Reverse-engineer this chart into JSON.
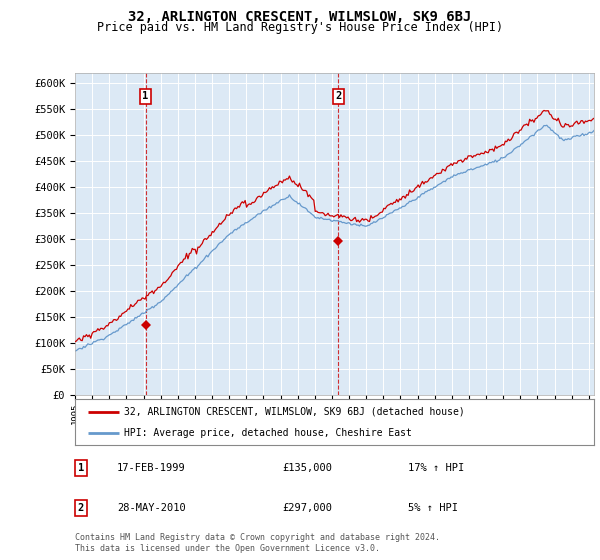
{
  "title": "32, ARLINGTON CRESCENT, WILMSLOW, SK9 6BJ",
  "subtitle": "Price paid vs. HM Land Registry's House Price Index (HPI)",
  "ylabel_ticks": [
    "£0",
    "£50K",
    "£100K",
    "£150K",
    "£200K",
    "£250K",
    "£300K",
    "£350K",
    "£400K",
    "£450K",
    "£500K",
    "£550K",
    "£600K"
  ],
  "ytick_values": [
    0,
    50000,
    100000,
    150000,
    200000,
    250000,
    300000,
    350000,
    400000,
    450000,
    500000,
    550000,
    600000
  ],
  "ylim": [
    0,
    620000
  ],
  "xlim_start": 1995.0,
  "xlim_end": 2025.3,
  "sale1_year": 1999.12,
  "sale1_price": 135000,
  "sale2_year": 2010.38,
  "sale2_price": 297000,
  "legend_line1": "32, ARLINGTON CRESCENT, WILMSLOW, SK9 6BJ (detached house)",
  "legend_line2": "HPI: Average price, detached house, Cheshire East",
  "note1_num": "1",
  "note1_date": "17-FEB-1999",
  "note1_price": "£135,000",
  "note1_hpi": "17% ↑ HPI",
  "note2_num": "2",
  "note2_date": "28-MAY-2010",
  "note2_price": "£297,000",
  "note2_hpi": "5% ↑ HPI",
  "footer": "Contains HM Land Registry data © Crown copyright and database right 2024.\nThis data is licensed under the Open Government Licence v3.0.",
  "red_color": "#cc0000",
  "blue_color": "#6699cc",
  "chart_bg": "#dce9f5",
  "grid_color": "#ffffff",
  "background_color": "#ffffff"
}
